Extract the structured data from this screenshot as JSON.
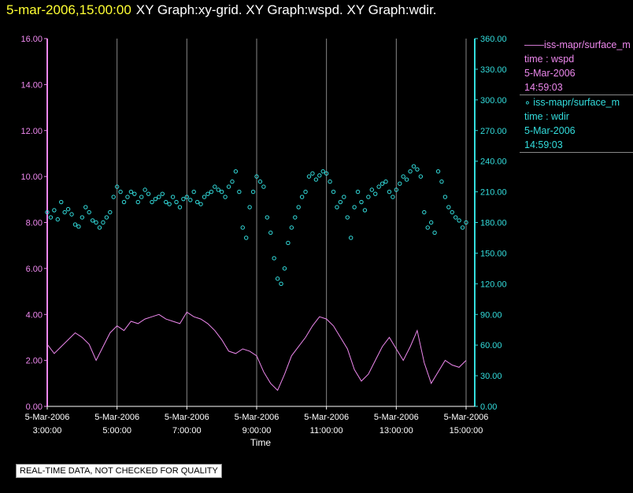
{
  "header": {
    "timestamp": "5-mar-2006,15:00:00",
    "titles": "XY Graph:xy-grid.  XY Graph:wspd.  XY Graph:wdir."
  },
  "legend": [
    {
      "name": "——iss-mapr/surface_m",
      "line2": "time : wspd",
      "line3": "5-Mar-2006",
      "line4": "14:59:03",
      "color": "#ee88ee"
    },
    {
      "name": "∘ iss-mapr/surface_m",
      "line2": "time : wdir",
      "line3": "5-Mar-2006",
      "line4": "14:59:03",
      "color": "#33dddd"
    }
  ],
  "notice": "REAL-TIME DATA, NOT CHECKED FOR QUALITY",
  "chart_data": {
    "type": "line",
    "xlabel": "Time",
    "x_ticks": [
      {
        "date": "5-Mar-2006",
        "time": "3:00:00",
        "hour": 3
      },
      {
        "date": "5-Mar-2006",
        "time": "5:00:00",
        "hour": 5
      },
      {
        "date": "5-Mar-2006",
        "time": "7:00:00",
        "hour": 7
      },
      {
        "date": "5-Mar-2006",
        "time": "9:00:00",
        "hour": 9
      },
      {
        "date": "5-Mar-2006",
        "time": "11:00:00",
        "hour": 11
      },
      {
        "date": "5-Mar-2006",
        "time": "13:00:00",
        "hour": 13
      },
      {
        "date": "5-Mar-2006",
        "time": "15:00:00",
        "hour": 15
      }
    ],
    "xlim": [
      3,
      15.0
    ],
    "left_axis": {
      "ylim": [
        0,
        16
      ],
      "ticks": [
        "0.00",
        "2.00",
        "4.00",
        "6.00",
        "8.00",
        "10.00",
        "12.00",
        "14.00",
        "16.00"
      ],
      "color": "#ee88ee"
    },
    "right_axis": {
      "ylim": [
        0,
        360
      ],
      "ticks": [
        "0.00",
        "30.00",
        "60.00",
        "90.00",
        "120.00",
        "150.00",
        "180.00",
        "210.00",
        "240.00",
        "270.00",
        "300.00",
        "330.00",
        "360.00"
      ],
      "color": "#33dddd"
    },
    "grid": "vertical",
    "series": [
      {
        "name": "iss-mapr/surface_m time : wspd",
        "axis": "left",
        "style": "line",
        "color": "#ee88ee",
        "x": [
          3.0,
          3.2,
          3.4,
          3.6,
          3.8,
          4.0,
          4.2,
          4.4,
          4.6,
          4.8,
          5.0,
          5.2,
          5.4,
          5.6,
          5.8,
          6.0,
          6.2,
          6.4,
          6.6,
          6.8,
          7.0,
          7.2,
          7.4,
          7.6,
          7.8,
          8.0,
          8.2,
          8.4,
          8.6,
          8.8,
          9.0,
          9.2,
          9.4,
          9.6,
          9.8,
          10.0,
          10.2,
          10.4,
          10.6,
          10.8,
          11.0,
          11.2,
          11.4,
          11.6,
          11.8,
          12.0,
          12.2,
          12.4,
          12.6,
          12.8,
          13.0,
          13.2,
          13.4,
          13.6,
          13.8,
          14.0,
          14.2,
          14.4,
          14.6,
          14.8,
          15.0
        ],
        "y": [
          2.7,
          2.3,
          2.6,
          2.9,
          3.2,
          3.0,
          2.7,
          2.0,
          2.6,
          3.2,
          3.5,
          3.3,
          3.7,
          3.6,
          3.8,
          3.9,
          4.0,
          3.8,
          3.7,
          3.6,
          4.1,
          3.9,
          3.8,
          3.6,
          3.3,
          2.9,
          2.4,
          2.3,
          2.5,
          2.4,
          2.2,
          1.5,
          1.0,
          0.7,
          1.4,
          2.2,
          2.6,
          3.0,
          3.5,
          3.9,
          3.8,
          3.5,
          3.0,
          2.5,
          1.6,
          1.1,
          1.4,
          2.0,
          2.6,
          3.0,
          2.5,
          2.0,
          2.6,
          3.3,
          1.9,
          1.0,
          1.5,
          2.0,
          1.8,
          1.7,
          2.0
        ]
      },
      {
        "name": "iss-mapr/surface_m time : wdir",
        "axis": "right",
        "style": "points",
        "color": "#33dddd",
        "x": [
          3.0,
          3.1,
          3.2,
          3.3,
          3.4,
          3.5,
          3.6,
          3.7,
          3.8,
          3.9,
          4.0,
          4.1,
          4.2,
          4.3,
          4.4,
          4.5,
          4.6,
          4.7,
          4.8,
          4.9,
          5.0,
          5.1,
          5.2,
          5.3,
          5.4,
          5.5,
          5.6,
          5.7,
          5.8,
          5.9,
          6.0,
          6.1,
          6.2,
          6.3,
          6.4,
          6.5,
          6.6,
          6.7,
          6.8,
          6.9,
          7.0,
          7.1,
          7.2,
          7.3,
          7.4,
          7.5,
          7.6,
          7.7,
          7.8,
          7.9,
          8.0,
          8.1,
          8.2,
          8.3,
          8.4,
          8.5,
          8.6,
          8.7,
          8.8,
          8.9,
          9.0,
          9.1,
          9.2,
          9.3,
          9.4,
          9.5,
          9.6,
          9.7,
          9.8,
          9.9,
          10.0,
          10.1,
          10.2,
          10.3,
          10.4,
          10.5,
          10.6,
          10.7,
          10.8,
          10.9,
          11.0,
          11.1,
          11.2,
          11.3,
          11.4,
          11.5,
          11.6,
          11.7,
          11.8,
          11.9,
          12.0,
          12.1,
          12.2,
          12.3,
          12.4,
          12.5,
          12.6,
          12.7,
          12.8,
          12.9,
          13.0,
          13.1,
          13.2,
          13.3,
          13.4,
          13.5,
          13.6,
          13.7,
          13.8,
          13.9,
          14.0,
          14.1,
          14.2,
          14.3,
          14.4,
          14.5,
          14.6,
          14.7,
          14.8,
          14.9,
          15.0
        ],
        "y": [
          190,
          185,
          192,
          183,
          200,
          190,
          193,
          188,
          178,
          176,
          185,
          195,
          190,
          182,
          180,
          175,
          180,
          185,
          190,
          205,
          215,
          210,
          200,
          205,
          210,
          208,
          200,
          205,
          212,
          208,
          200,
          203,
          205,
          208,
          200,
          198,
          205,
          200,
          195,
          203,
          205,
          202,
          210,
          200,
          198,
          205,
          208,
          210,
          215,
          212,
          210,
          205,
          215,
          220,
          230,
          210,
          175,
          165,
          195,
          210,
          225,
          220,
          215,
          185,
          170,
          145,
          125,
          120,
          135,
          160,
          175,
          185,
          195,
          205,
          210,
          225,
          228,
          222,
          226,
          230,
          228,
          220,
          210,
          195,
          200,
          205,
          185,
          165,
          195,
          210,
          200,
          192,
          205,
          212,
          208,
          215,
          218,
          220,
          210,
          205,
          212,
          218,
          225,
          222,
          230,
          235,
          232,
          225,
          190,
          175,
          180,
          170,
          230,
          220,
          205,
          195,
          190,
          185,
          182,
          175,
          180
        ]
      }
    ]
  }
}
